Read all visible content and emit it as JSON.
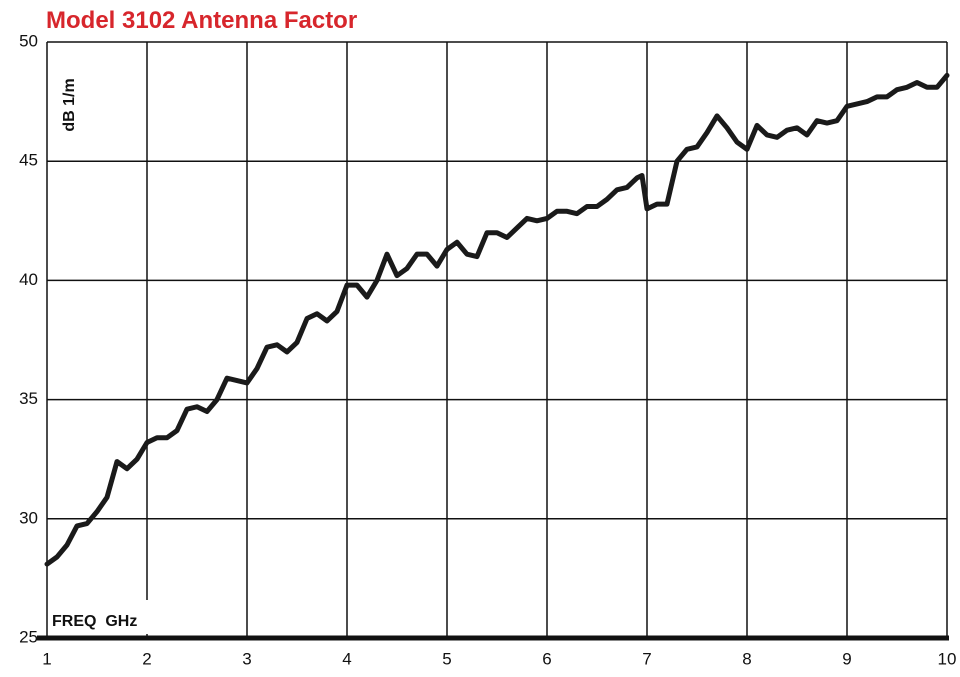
{
  "chart_data": {
    "type": "line",
    "title": "Model 3102 Antenna Factor",
    "ylabel": "dB 1/m",
    "xlabel": "FREQ  GHz",
    "xlim": [
      1,
      10
    ],
    "ylim": [
      25,
      50
    ],
    "xticks": [
      1,
      2,
      3,
      4,
      5,
      6,
      7,
      8,
      9,
      10
    ],
    "yticks": [
      25,
      30,
      35,
      40,
      45,
      50
    ],
    "grid": true,
    "series": [
      {
        "color": "#1a1a1a",
        "x": [
          1.0,
          1.1,
          1.2,
          1.3,
          1.4,
          1.5,
          1.6,
          1.7,
          1.8,
          1.9,
          2.0,
          2.1,
          2.2,
          2.3,
          2.4,
          2.5,
          2.6,
          2.7,
          2.8,
          2.9,
          3.0,
          3.1,
          3.2,
          3.3,
          3.4,
          3.5,
          3.6,
          3.7,
          3.8,
          3.9,
          4.0,
          4.1,
          4.2,
          4.3,
          4.4,
          4.5,
          4.6,
          4.7,
          4.8,
          4.9,
          5.0,
          5.1,
          5.2,
          5.3,
          5.4,
          5.5,
          5.6,
          5.7,
          5.8,
          5.9,
          6.0,
          6.1,
          6.2,
          6.3,
          6.4,
          6.5,
          6.6,
          6.7,
          6.8,
          6.9,
          6.95,
          7.0,
          7.1,
          7.2,
          7.3,
          7.4,
          7.5,
          7.6,
          7.7,
          7.8,
          7.9,
          8.0,
          8.1,
          8.2,
          8.3,
          8.4,
          8.5,
          8.6,
          8.7,
          8.8,
          8.9,
          9.0,
          9.1,
          9.2,
          9.3,
          9.4,
          9.5,
          9.6,
          9.7,
          9.8,
          9.9,
          10.0
        ],
        "values": [
          28.1,
          28.4,
          28.9,
          29.7,
          29.8,
          30.3,
          30.9,
          32.4,
          32.1,
          32.5,
          33.2,
          33.4,
          33.4,
          33.7,
          34.6,
          34.7,
          34.5,
          35.0,
          35.9,
          35.8,
          35.7,
          36.3,
          37.2,
          37.3,
          37.0,
          37.4,
          38.4,
          38.6,
          38.3,
          38.7,
          39.8,
          39.8,
          39.3,
          40.0,
          41.1,
          40.2,
          40.5,
          41.1,
          41.1,
          40.6,
          41.3,
          41.6,
          41.1,
          41.0,
          42.0,
          42.0,
          41.8,
          42.2,
          42.6,
          42.5,
          42.6,
          42.9,
          42.9,
          42.8,
          43.1,
          43.1,
          43.4,
          43.8,
          43.9,
          44.3,
          44.4,
          43.0,
          43.2,
          43.2,
          45.0,
          45.5,
          45.6,
          46.2,
          46.9,
          46.4,
          45.8,
          45.5,
          46.5,
          46.1,
          46.0,
          46.3,
          46.4,
          46.1,
          46.7,
          46.6,
          46.7,
          47.3,
          47.4,
          47.5,
          47.7,
          47.7,
          48.0,
          48.1,
          48.3,
          48.1,
          48.1,
          48.6
        ]
      }
    ]
  }
}
